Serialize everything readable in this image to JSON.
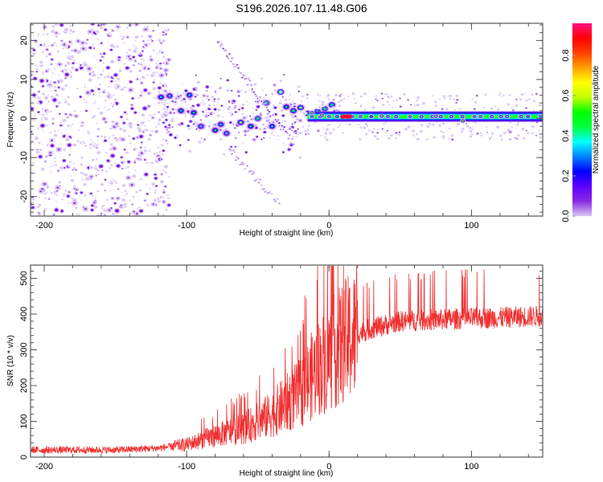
{
  "title": "S196.2026.107.11.48.G06",
  "chart_data": [
    {
      "type": "heatmap",
      "name": "spectrogram",
      "xlabel": "Height of straight line (km)",
      "ylabel": "Frequency (Hz)",
      "xlim": [
        -209.6,
        150
      ],
      "ylim": [
        -25,
        24.4
      ],
      "xticks": [
        -200,
        -100,
        0,
        100
      ],
      "xtick_labels": [
        "-200",
        "-100",
        "0",
        "100"
      ],
      "yticks": [
        -20,
        -10,
        0,
        10,
        20
      ],
      "ytick_labels": [
        "-20",
        "-10",
        "0",
        "10",
        "20"
      ],
      "colorbar": {
        "label": "Normalized spectral amplitude",
        "range": [
          0,
          0.96
        ],
        "ticks": [
          0.0,
          0.2,
          0.4,
          0.6,
          0.8
        ],
        "tick_labels": [
          "0.0",
          "0.2",
          "0.4",
          "0.6",
          "0.8"
        ],
        "colormap": [
          "#ffffff",
          "#d9c6f5",
          "#8a2be2",
          "#6000ff",
          "#0000ff",
          "#0080ff",
          "#00ffff",
          "#00ff40",
          "#00ff00",
          "#c0ff00",
          "#ffff00",
          "#ffa000",
          "#ff4000",
          "#ff0000",
          "#ff1080"
        ]
      },
      "features": {
        "noise_region_km": [
          -209.6,
          -120
        ],
        "scatter_region_km": [
          -120,
          -20
        ],
        "carrier_region_km": [
          -20,
          150
        ],
        "carrier_freq_hz": 0.5,
        "carrier_peak_km": [
          8,
          16
        ],
        "carrier_peak_amplitude": 0.95
      },
      "grid": false
    },
    {
      "type": "line",
      "name": "snr",
      "xlabel": "Height of straight line (km)",
      "ylabel": "SNR (10 * v/v)",
      "xlim": [
        -209.6,
        150
      ],
      "ylim": [
        0,
        537
      ],
      "xticks": [
        -200,
        -100,
        0,
        100
      ],
      "xtick_labels": [
        "-200",
        "-100",
        "0",
        "100"
      ],
      "yticks": [
        0,
        100,
        200,
        300,
        400,
        500
      ],
      "ytick_labels": [
        "0",
        "100",
        "200",
        "300",
        "400",
        "500"
      ],
      "color": "#f03030",
      "trend": {
        "x": [
          -209.6,
          -150,
          -120,
          -100,
          -80,
          -60,
          -40,
          -20,
          -10,
          0,
          10,
          20,
          30,
          50,
          80,
          100,
          120,
          150
        ],
        "y": [
          20,
          20,
          25,
          35,
          60,
          80,
          120,
          180,
          240,
          280,
          320,
          345,
          360,
          380,
          385,
          388,
          390,
          395
        ]
      },
      "grid": false
    }
  ]
}
